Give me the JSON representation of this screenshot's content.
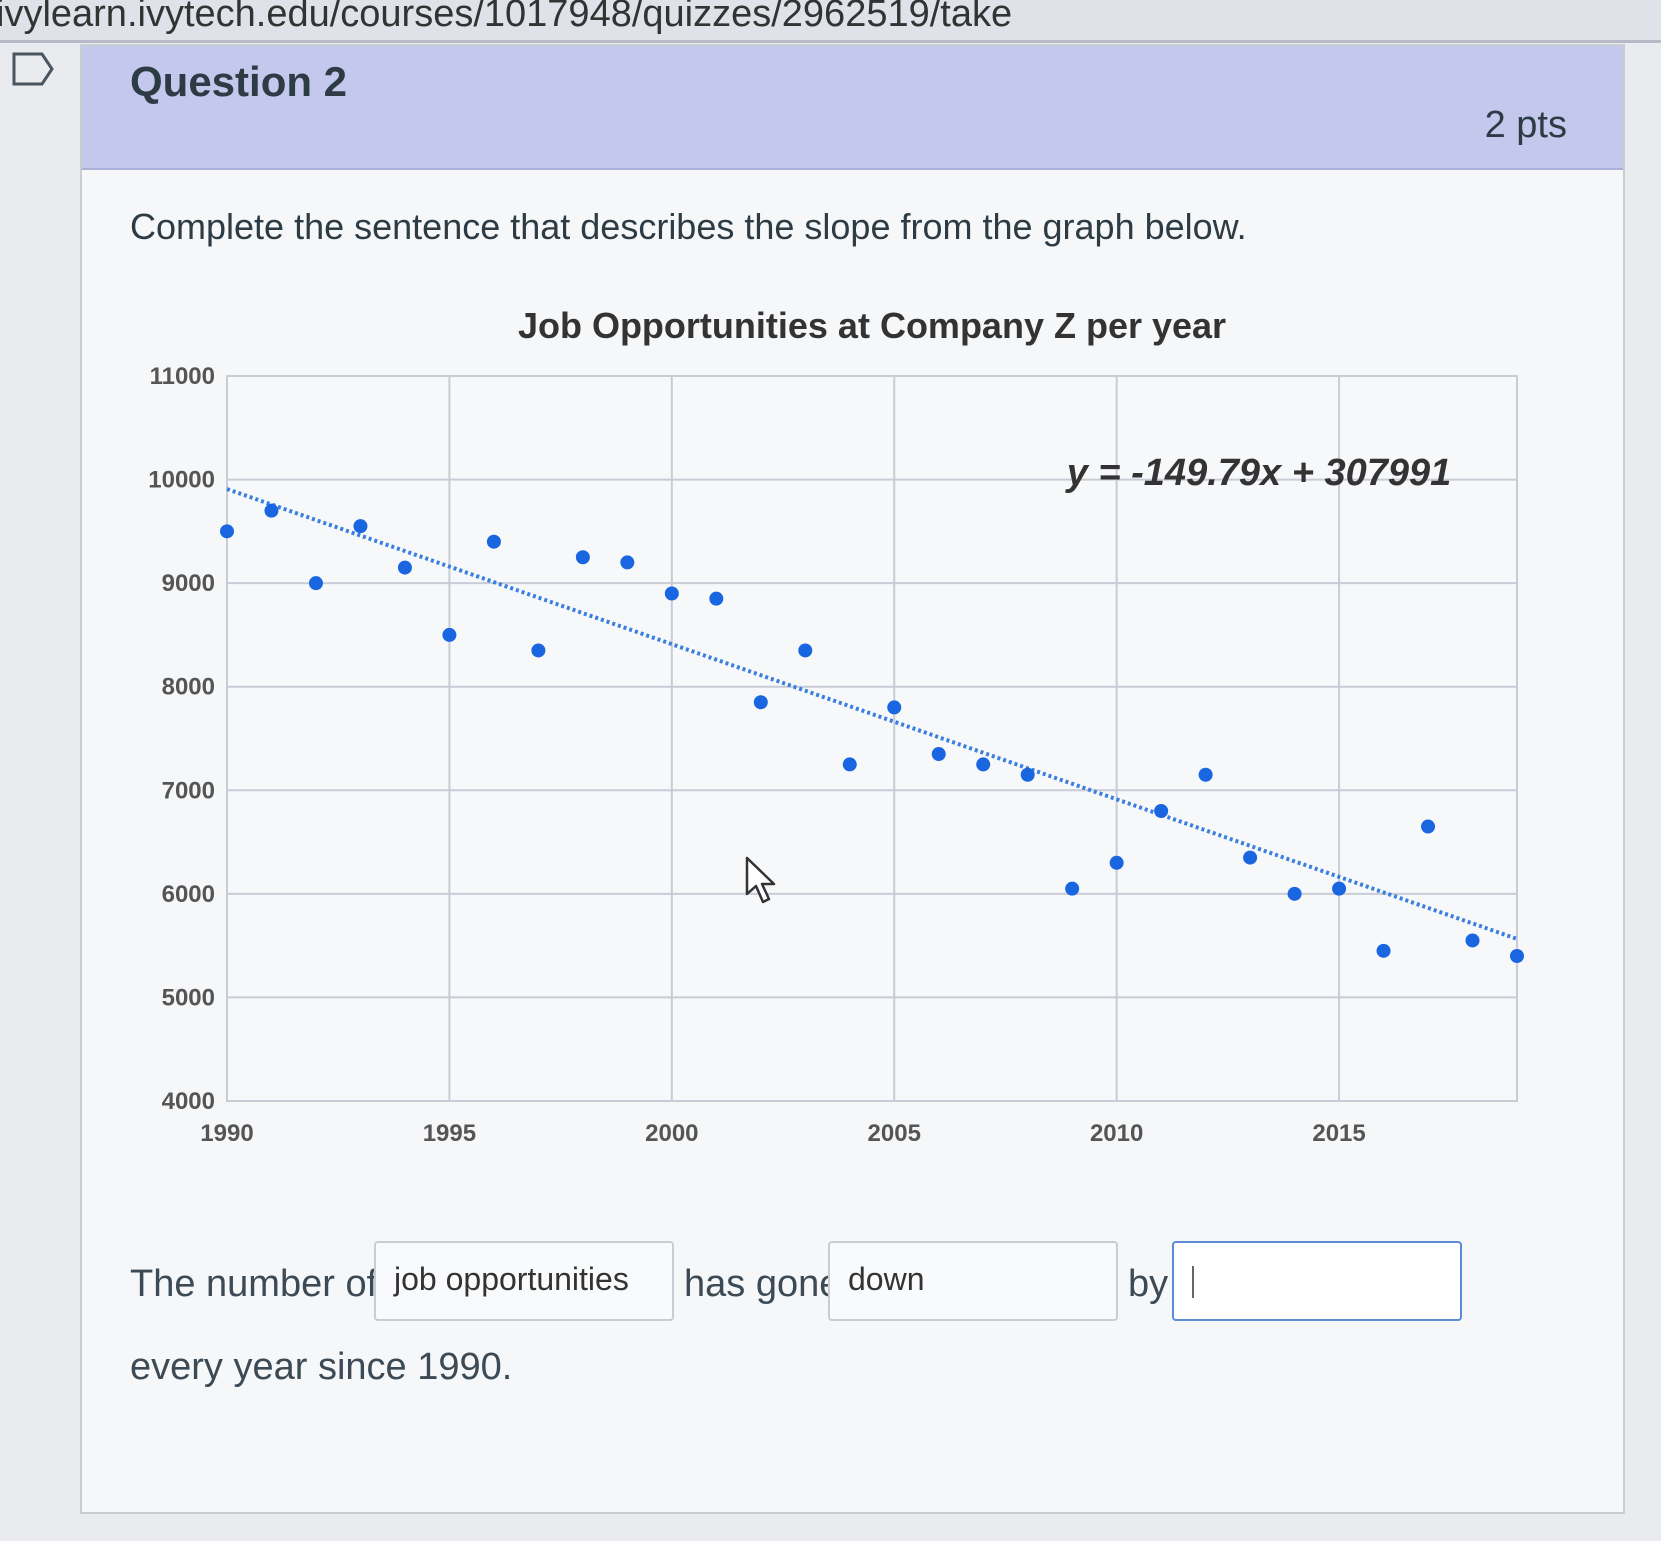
{
  "browser": {
    "url": "ivylearn.ivytech.edu/courses/1017948/quizzes/2962519/take"
  },
  "question": {
    "title": "Question 2",
    "points": "2 pts",
    "prompt": "Complete the sentence that describes the slope from the graph below."
  },
  "chart_data": {
    "type": "scatter",
    "title": "Job Opportunities at Company Z per year",
    "xlabel": "",
    "ylabel": "",
    "xlim": [
      1990,
      2019
    ],
    "ylim": [
      4000,
      11000
    ],
    "x_ticks": [
      1990,
      1995,
      2000,
      2005,
      2010,
      2015
    ],
    "y_ticks": [
      4000,
      5000,
      6000,
      7000,
      8000,
      9000,
      10000,
      11000
    ],
    "grid": true,
    "trendline": {
      "equation": "y = -149.79x + 307991",
      "slope": -149.79,
      "intercept": 307991,
      "style": "dotted"
    },
    "colors": {
      "points": "#1a66e0",
      "trendline": "#3a7fe0",
      "grid": "#c9ccd6"
    },
    "series": [
      {
        "x": [
          1990,
          1991,
          1992,
          1993,
          1994,
          1995,
          1996,
          1997,
          1998,
          1999,
          2000,
          2001,
          2002,
          2003,
          2004,
          2005,
          2006,
          2007,
          2008,
          2009,
          2010,
          2011,
          2012,
          2013,
          2014,
          2015,
          2016,
          2017,
          2018,
          2019
        ],
        "y": [
          9500,
          9700,
          9000,
          9550,
          9150,
          8500,
          9400,
          8350,
          9250,
          9200,
          8900,
          8850,
          7850,
          8350,
          7250,
          7800,
          7350,
          7250,
          7150,
          6050,
          6300,
          6800,
          7150,
          6350,
          6000,
          6050,
          5450,
          6650,
          5550,
          5400
        ]
      }
    ]
  },
  "sentence": {
    "part1": "The number of",
    "blank1_value": "job opportunities",
    "part2": "has gone",
    "blank2_value": "down",
    "part3": "by",
    "blank3_value": "",
    "part4": "every year since 1990."
  },
  "icons": {
    "flag": "bookmark-flag-icon",
    "cursor": "mouse-pointer-icon"
  }
}
